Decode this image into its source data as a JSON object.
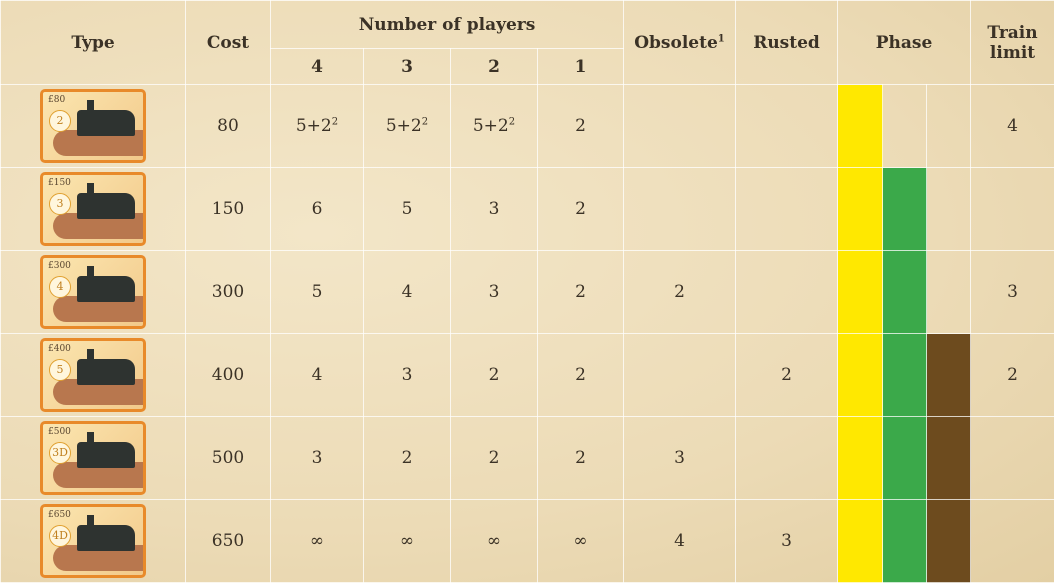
{
  "header": {
    "type": "Type",
    "cost": "Cost",
    "players": "Number of players",
    "player_counts": [
      4,
      3,
      2,
      1
    ],
    "obsolete": "Obsolete",
    "obsolete_sup": "1",
    "rusted": "Rusted",
    "phase": "Phase",
    "train_limit": "Train limit"
  },
  "phase_colors": [
    "#ffe800",
    "#3ba94a",
    "#6d4b1e"
  ],
  "rows": [
    {
      "card_price": "£80",
      "card_type": "2",
      "cost": 80,
      "players": [
        {
          "text": "5+2",
          "sup": "2"
        },
        {
          "text": "5+2",
          "sup": "2"
        },
        {
          "text": "5+2",
          "sup": "2"
        },
        {
          "text": "2"
        }
      ],
      "obsolete": null,
      "rusted": null,
      "phase_count": 1,
      "train_limit": 4
    },
    {
      "card_price": "£150",
      "card_type": "3",
      "cost": 150,
      "players": [
        {
          "text": "6"
        },
        {
          "text": "5"
        },
        {
          "text": "3"
        },
        {
          "text": "2"
        }
      ],
      "obsolete": null,
      "rusted": null,
      "phase_count": 2,
      "train_limit": null
    },
    {
      "card_price": "£300",
      "card_type": "4",
      "cost": 300,
      "players": [
        {
          "text": "5"
        },
        {
          "text": "4"
        },
        {
          "text": "3"
        },
        {
          "text": "2"
        }
      ],
      "obsolete": 2,
      "rusted": null,
      "phase_count": 2,
      "train_limit": 3
    },
    {
      "card_price": "£400",
      "card_type": "5",
      "cost": 400,
      "players": [
        {
          "text": "4"
        },
        {
          "text": "3"
        },
        {
          "text": "2"
        },
        {
          "text": "2"
        }
      ],
      "obsolete": null,
      "rusted": 2,
      "phase_count": 3,
      "train_limit": 2
    },
    {
      "card_price": "£500",
      "card_type": "3D",
      "cost": 500,
      "players": [
        {
          "text": "3"
        },
        {
          "text": "2"
        },
        {
          "text": "2"
        },
        {
          "text": "2"
        }
      ],
      "obsolete": 3,
      "rusted": null,
      "phase_count": 3,
      "train_limit": null
    },
    {
      "card_price": "£650",
      "card_type": "4D",
      "cost": 650,
      "players": [
        {
          "text": "∞"
        },
        {
          "text": "∞"
        },
        {
          "text": "∞"
        },
        {
          "text": "∞"
        }
      ],
      "obsolete": 4,
      "rusted": 3,
      "phase_count": 3,
      "train_limit": null
    }
  ]
}
